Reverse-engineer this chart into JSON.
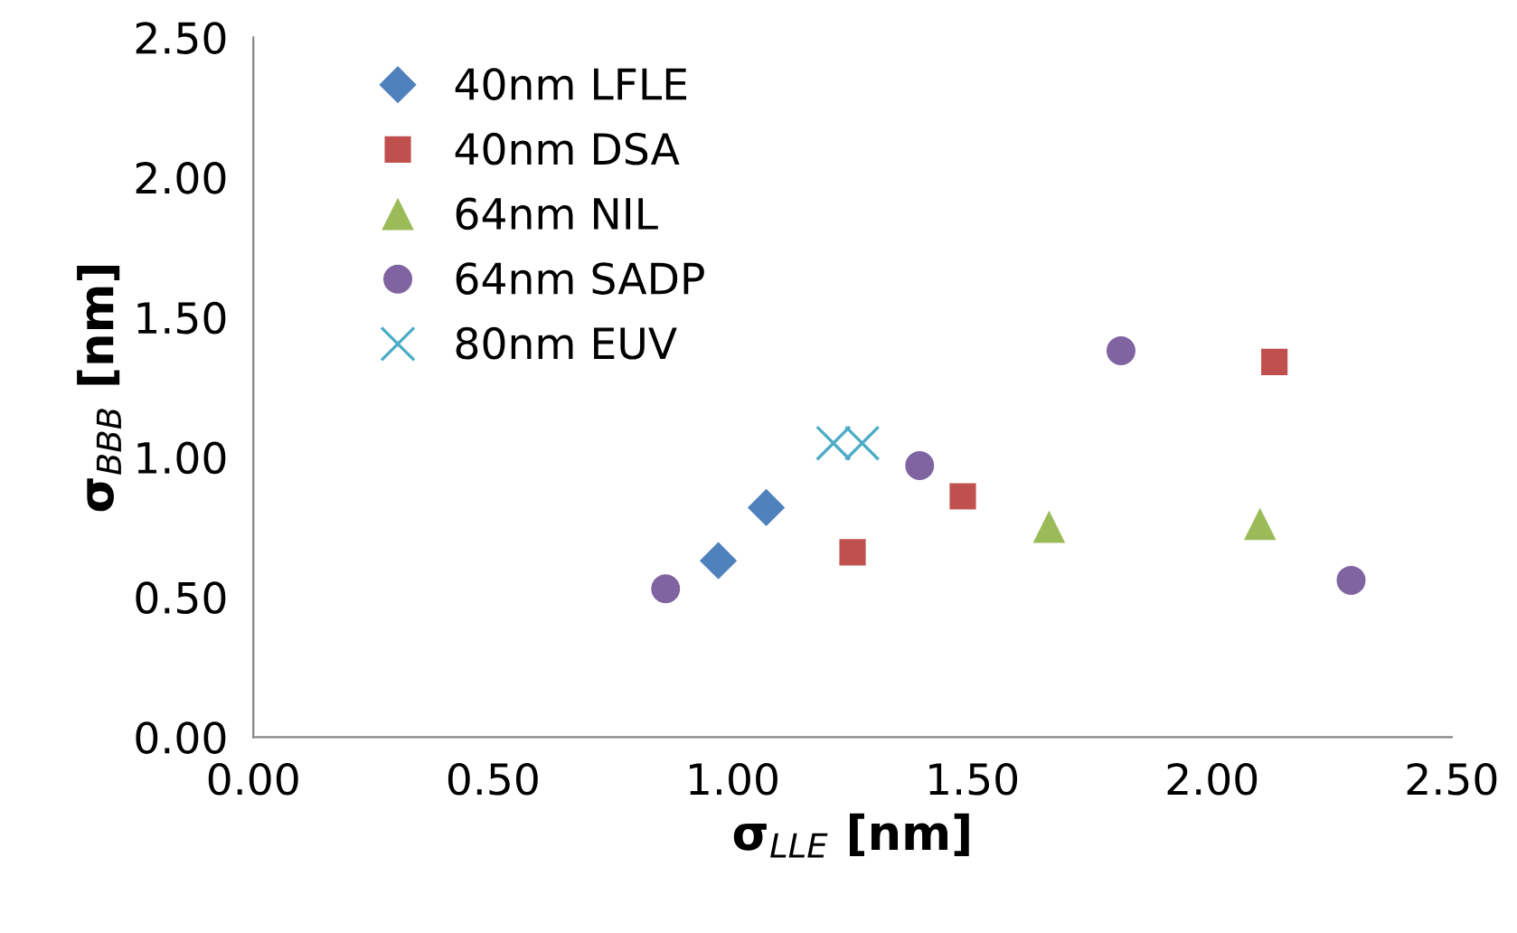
{
  "chart_data": {
    "type": "scatter",
    "xlabel": "σ$_{LLE}$ [nm]",
    "ylabel": "σ$_{BBB}$ [nm]",
    "xlim": [
      0,
      2.5
    ],
    "ylim": [
      0,
      2.5
    ],
    "xticks": [
      {
        "value": 0,
        "label": "0.00"
      },
      {
        "value": 0.5,
        "label": "0.50"
      },
      {
        "value": 1,
        "label": "1.00"
      },
      {
        "value": 1.5,
        "label": "1.50"
      },
      {
        "value": 2,
        "label": "2.00"
      },
      {
        "value": 2.5,
        "label": "2.50"
      }
    ],
    "yticks": [
      {
        "value": 0,
        "label": "0.00"
      },
      {
        "value": 0.5,
        "label": "0.50"
      },
      {
        "value": 1,
        "label": "1.00"
      },
      {
        "value": 1.5,
        "label": "1.50"
      },
      {
        "value": 2,
        "label": "2.00"
      },
      {
        "value": 2.5,
        "label": "2.50"
      }
    ],
    "grid": false,
    "legend": "top left",
    "series": [
      {
        "name": "40nm LFLE",
        "color": "#4f81bd",
        "marker": "diamond",
        "x": [
          0.97,
          1.07
        ],
        "values": [
          0.63,
          0.82
        ]
      },
      {
        "name": "40nm DSA",
        "color": "#c0504d",
        "marker": "square",
        "x": [
          1.25,
          1.48,
          2.13
        ],
        "values": [
          0.66,
          0.86,
          1.34
        ]
      },
      {
        "name": "64nm NIL",
        "color": "#9bbb59",
        "marker": "triangle",
        "x": [
          1.66,
          2.1
        ],
        "values": [
          0.75,
          0.76
        ]
      },
      {
        "name": "64nm SADP",
        "color": "#8064a2",
        "marker": "circle",
        "x": [
          0.86,
          1.39,
          1.81,
          2.29
        ],
        "values": [
          0.53,
          0.97,
          1.38,
          0.56
        ]
      },
      {
        "name": "80nm EUV",
        "color": "#4bacc6",
        "marker": "cross",
        "x": [
          1.21,
          1.27
        ],
        "values": [
          1.05,
          1.05
        ]
      }
    ]
  }
}
